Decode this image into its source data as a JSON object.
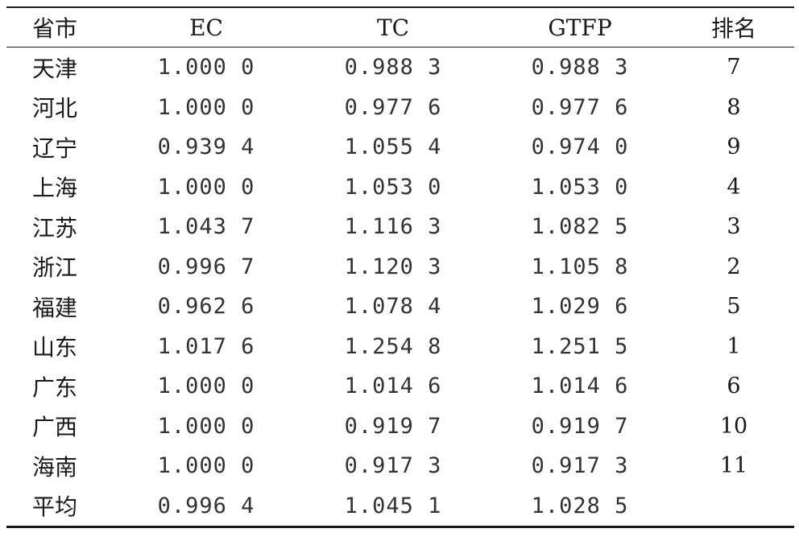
{
  "table": {
    "headers": [
      "省市",
      "EC",
      "TC",
      "GTFP",
      "排名"
    ],
    "rows": [
      {
        "region": "天津",
        "ec": "1.000 0",
        "tc": "0.988 3",
        "gtfp": "0.988 3",
        "rank": "7"
      },
      {
        "region": "河北",
        "ec": "1.000 0",
        "tc": "0.977 6",
        "gtfp": "0.977 6",
        "rank": "8"
      },
      {
        "region": "辽宁",
        "ec": "0.939 4",
        "tc": "1.055 4",
        "gtfp": "0.974 0",
        "rank": "9"
      },
      {
        "region": "上海",
        "ec": "1.000 0",
        "tc": "1.053 0",
        "gtfp": "1.053 0",
        "rank": "4"
      },
      {
        "region": "江苏",
        "ec": "1.043 7",
        "tc": "1.116 3",
        "gtfp": "1.082 5",
        "rank": "3"
      },
      {
        "region": "浙江",
        "ec": "0.996 7",
        "tc": "1.120 3",
        "gtfp": "1.105 8",
        "rank": "2"
      },
      {
        "region": "福建",
        "ec": "0.962 6",
        "tc": "1.078 4",
        "gtfp": "1.029 6",
        "rank": "5"
      },
      {
        "region": "山东",
        "ec": "1.017 6",
        "tc": "1.254 8",
        "gtfp": "1.251 5",
        "rank": "1"
      },
      {
        "region": "广东",
        "ec": "1.000 0",
        "tc": "1.014 6",
        "gtfp": "1.014 6",
        "rank": "6"
      },
      {
        "region": "广西",
        "ec": "1.000 0",
        "tc": "0.919 7",
        "gtfp": "0.919 7",
        "rank": "10"
      },
      {
        "region": "海南",
        "ec": "1.000 0",
        "tc": "0.917 3",
        "gtfp": "0.917 3",
        "rank": "11"
      },
      {
        "region": "平均",
        "ec": "0.996 4",
        "tc": "1.045 1",
        "gtfp": "1.028 5",
        "rank": ""
      }
    ]
  },
  "colors": {
    "text": "#1a1a1a",
    "numbers": "#333333",
    "rules": "#1a1a1a",
    "background": "#ffffff"
  }
}
